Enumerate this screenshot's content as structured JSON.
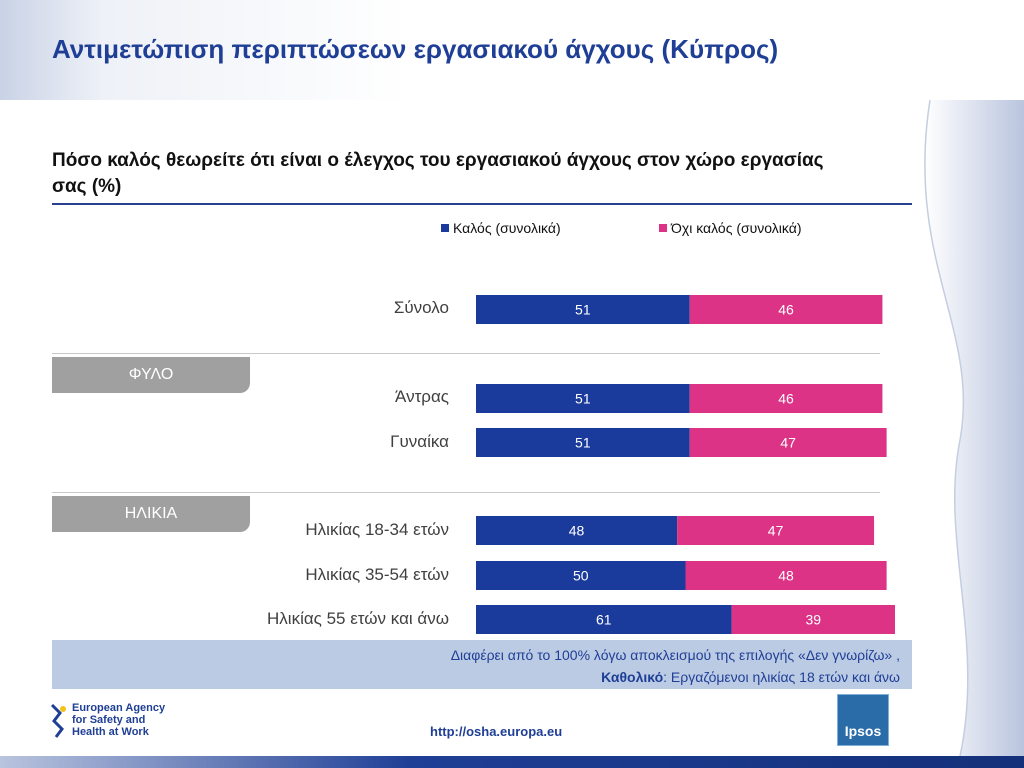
{
  "page": {
    "title": "Αντιμετώπιση περιπτώσεων εργασιακού άγχους (Κύπρος)",
    "question": "Πόσο καλός θεωρείτε ότι είναι ο έλεγχος του εργασιακού άγχους στον χώρο εργασίας σας (%)"
  },
  "groups": {
    "sex": "ΦΥΛΟ",
    "age": "ΗΛΙΚΙΑ"
  },
  "colors": {
    "good": "#1a3a9c",
    "not_good": "#dc3386",
    "title": "#1f3f96",
    "group_tag": "#a0a0a0"
  },
  "chart_data": {
    "type": "bar",
    "orientation": "horizontal",
    "stacked": true,
    "categories": [
      "Σύνολο",
      "Άντρας",
      "Γυναίκα",
      "Ηλικίας 18-34 ετών",
      "Ηλικίας 35-54 ετών",
      "Ηλικίας 55 ετών και άνω"
    ],
    "series": [
      {
        "name": "Καλός (συνολικά)",
        "values": [
          51,
          51,
          51,
          48,
          50,
          61
        ]
      },
      {
        "name": "Όχι καλός (συνολικά)",
        "values": [
          46,
          46,
          47,
          47,
          48,
          39
        ]
      }
    ],
    "xlim": [
      0,
      100
    ],
    "grid": false,
    "legend_position": "top"
  },
  "footnote": {
    "line1": "Διαφέρει από το 100% λόγω αποκλεισμού της επιλογής «Δεν γνωρίζω» ,",
    "base_label": "Καθολικό",
    "base_text": ": Εργαζόμενοι ηλικίας 18 ετών και άνω"
  },
  "footer": {
    "url": "http://osha.europa.eu",
    "eu_logo_text": "European Agency for Safety and Health at Work",
    "ipsos_logo_text": "Ipsos"
  }
}
